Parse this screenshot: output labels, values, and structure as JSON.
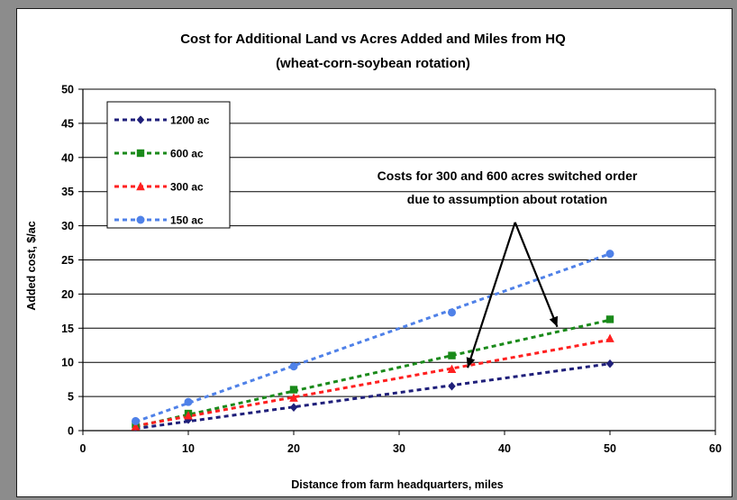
{
  "chart_data": {
    "type": "scatter",
    "title": "Cost for Additional Land vs Acres Added and Miles from HQ",
    "subtitle": "(wheat-corn-soybean rotation)",
    "xlabel": "Distance from farm headquarters, miles",
    "ylabel": "Added cost, $/ac",
    "xlim": [
      0,
      60
    ],
    "ylim": [
      0,
      50
    ],
    "xticks": [
      0,
      10,
      20,
      30,
      40,
      50,
      60
    ],
    "yticks": [
      0,
      5,
      10,
      15,
      20,
      25,
      30,
      35,
      40,
      45,
      50
    ],
    "grid": "horizontal",
    "legend_position": "top-left",
    "series": [
      {
        "name": "1200 ac",
        "marker": "diamond",
        "color": "#1f1f7a",
        "x": [
          5,
          10,
          20,
          35,
          50
        ],
        "y": [
          0.5,
          1.6,
          3.4,
          6.5,
          9.8
        ],
        "trend": [
          [
            5,
            0.3
          ],
          [
            50,
            9.8
          ]
        ]
      },
      {
        "name": "600 ac",
        "marker": "square",
        "color": "#1a8a1a",
        "x": [
          5,
          10,
          20,
          35,
          50
        ],
        "y": [
          0.9,
          2.5,
          6.0,
          11.0,
          16.3
        ],
        "trend": [
          [
            5,
            0.6
          ],
          [
            50,
            16.2
          ]
        ]
      },
      {
        "name": "300 ac",
        "marker": "triangle",
        "color": "#ff2020",
        "x": [
          5,
          10,
          20,
          35,
          50
        ],
        "y": [
          0.6,
          2.2,
          4.8,
          9.0,
          13.5
        ],
        "trend": [
          [
            5,
            0.7
          ],
          [
            50,
            13.3
          ]
        ]
      },
      {
        "name": "150 ac",
        "marker": "circle",
        "color": "#4f81e8",
        "x": [
          5,
          10,
          20,
          35,
          50
        ],
        "y": [
          1.4,
          4.2,
          9.4,
          17.3,
          25.9
        ],
        "trend": [
          [
            5,
            1.3
          ],
          [
            50,
            25.9
          ]
        ]
      }
    ],
    "annotation": {
      "lines": [
        "Costs for 300 and 600 acres switched order",
        "due to assumption about rotation"
      ],
      "arrow_origin": [
        41,
        30.5
      ],
      "arrow_targets": [
        [
          36.5,
          9.2
        ],
        [
          45,
          15.2
        ]
      ]
    }
  }
}
